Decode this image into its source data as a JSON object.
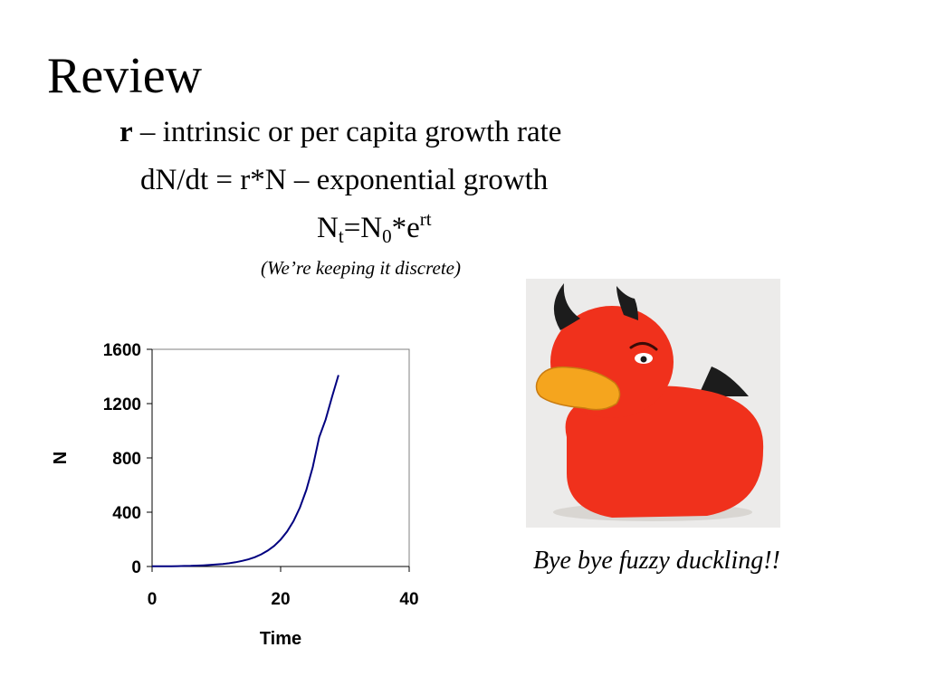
{
  "slide": {
    "title": "Review",
    "line1_bold": "r",
    "line1_rest": " – intrinsic or per capita growth rate",
    "line2": "dN/dt = r*N – exponential growth",
    "formula": {
      "part_a": "N",
      "sub_a": "t",
      "part_b": "=N",
      "sub_b": "0",
      "part_c": "*e",
      "sup_c": "rt"
    },
    "note": "(We’re keeping it discrete)",
    "caption": "Bye bye fuzzy duckling!!"
  },
  "colors": {
    "curve": "#000080",
    "duck_body": "#f0311c",
    "duck_beak": "#f5a51e",
    "horn": "#1c1c1c",
    "photo_bg": "#ecebea"
  },
  "chart_data": {
    "type": "line",
    "xlabel": "Time",
    "ylabel": "N",
    "xlim": [
      0,
      40
    ],
    "ylim": [
      0,
      1600
    ],
    "xticks": [
      "0",
      "20",
      "40"
    ],
    "yticks": [
      "1600",
      "1200",
      "800",
      "400",
      "0"
    ],
    "grid": false,
    "series": [
      {
        "x": [
          0,
          1,
          2,
          3,
          4,
          5,
          6,
          7,
          8,
          9,
          10,
          11,
          12,
          13,
          14,
          15,
          16,
          17,
          18,
          19,
          20,
          21,
          22,
          23,
          24,
          25,
          26,
          27,
          28,
          29
        ],
        "values": [
          1,
          1.3,
          1.7,
          2.2,
          2.9,
          3.8,
          5,
          6.5,
          8.5,
          11,
          14.4,
          18.7,
          24.3,
          31.6,
          41,
          53,
          69,
          90,
          117,
          152,
          198,
          257,
          334,
          434,
          564,
          733,
          953,
          1082,
          1250,
          1410
        ]
      }
    ]
  }
}
